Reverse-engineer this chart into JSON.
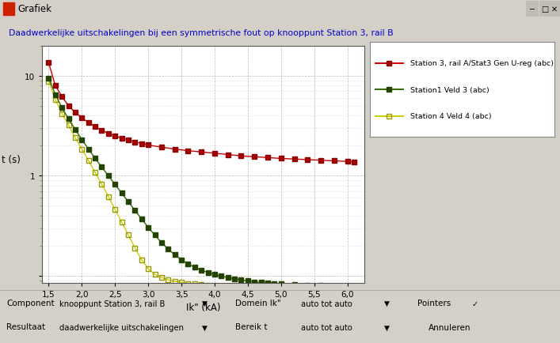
{
  "title": "Daadwerkelijke uitschakelingen bij een symmetrische fout op knooppunt Station 3, rail B",
  "title_color": "#0000cc",
  "xlabel": "Ik\" (kA)",
  "ylabel": "t (s)",
  "xlim": [
    1.4,
    6.25
  ],
  "ylim_log": [
    0.085,
    20
  ],
  "background_color": "#d4d0c8",
  "plot_bg_color": "#ffffff",
  "grid_color": "#bbbbbb",
  "series1": {
    "label": "Station 3, rail A/Stat3 Gen U-reg (abc)",
    "color": "#cc0000",
    "marker_fill": "#aa0000",
    "marker_edge": "#880000",
    "x": [
      1.5,
      1.6,
      1.7,
      1.8,
      1.9,
      2.0,
      2.1,
      2.2,
      2.3,
      2.4,
      2.5,
      2.6,
      2.7,
      2.8,
      2.9,
      3.0,
      3.2,
      3.4,
      3.6,
      3.8,
      4.0,
      4.2,
      4.4,
      4.6,
      4.8,
      5.0,
      5.2,
      5.4,
      5.6,
      5.8,
      6.0,
      6.1
    ],
    "y": [
      13.5,
      8.0,
      6.2,
      5.0,
      4.3,
      3.8,
      3.4,
      3.1,
      2.85,
      2.65,
      2.5,
      2.38,
      2.28,
      2.18,
      2.1,
      2.03,
      1.93,
      1.85,
      1.78,
      1.73,
      1.68,
      1.63,
      1.58,
      1.55,
      1.52,
      1.49,
      1.47,
      1.45,
      1.43,
      1.41,
      1.39,
      1.38
    ]
  },
  "series2": {
    "label": "Station1 Veld 3 (abc)",
    "color": "#336600",
    "marker_fill": "#224400",
    "marker_edge": "#224400",
    "x": [
      1.5,
      1.6,
      1.7,
      1.8,
      1.9,
      2.0,
      2.1,
      2.2,
      2.3,
      2.4,
      2.5,
      2.6,
      2.7,
      2.8,
      2.9,
      3.0,
      3.1,
      3.2,
      3.3,
      3.4,
      3.5,
      3.6,
      3.7,
      3.8,
      3.9,
      4.0,
      4.1,
      4.2,
      4.3,
      4.4,
      4.5,
      4.6,
      4.7,
      4.8,
      4.9,
      5.0,
      5.2,
      5.4,
      5.6,
      5.8,
      6.0,
      6.1
    ],
    "y": [
      9.5,
      6.5,
      4.8,
      3.7,
      2.9,
      2.3,
      1.85,
      1.5,
      1.22,
      1.0,
      0.82,
      0.67,
      0.55,
      0.45,
      0.37,
      0.305,
      0.255,
      0.215,
      0.185,
      0.162,
      0.145,
      0.132,
      0.122,
      0.114,
      0.108,
      0.103,
      0.099,
      0.096,
      0.093,
      0.091,
      0.089,
      0.087,
      0.086,
      0.085,
      0.084,
      0.083,
      0.082,
      0.081,
      0.08,
      0.079,
      0.078,
      0.078
    ]
  },
  "series3": {
    "label": "Station 4 Veld 4 (abc)",
    "color": "#cccc00",
    "marker_fill": "none",
    "marker_edge": "#999900",
    "x": [
      1.5,
      1.6,
      1.7,
      1.8,
      1.9,
      2.0,
      2.1,
      2.2,
      2.3,
      2.4,
      2.5,
      2.6,
      2.7,
      2.8,
      2.9,
      3.0,
      3.1,
      3.2,
      3.3,
      3.4,
      3.5,
      3.6,
      3.7,
      3.8,
      3.9,
      4.0,
      4.1,
      4.2,
      4.3,
      4.4,
      4.5,
      4.6,
      4.7,
      4.8,
      4.9,
      5.0,
      5.2,
      5.4,
      5.6,
      5.8,
      6.0,
      6.1
    ],
    "y": [
      8.8,
      5.8,
      4.2,
      3.2,
      2.4,
      1.85,
      1.42,
      1.08,
      0.82,
      0.62,
      0.46,
      0.345,
      0.255,
      0.19,
      0.145,
      0.118,
      0.103,
      0.096,
      0.091,
      0.088,
      0.086,
      0.084,
      0.083,
      0.082,
      0.081,
      0.08,
      0.079,
      0.079,
      0.078,
      0.078,
      0.077,
      0.077,
      0.077,
      0.077,
      0.077,
      0.077,
      0.077,
      0.077,
      0.077,
      0.077,
      0.077,
      0.077
    ]
  },
  "window_title": "Grafiek",
  "window_bg": "#d4d0c8",
  "titlebar_bg": "#d4d0c8",
  "bottom_bg": "#d4d0c8",
  "legend_entries": [
    "Station 3, rail A/Stat3 Gen U-reg (abc)",
    "Station1 Veld 3 (abc)",
    "Station 4 Veld 4 (abc)"
  ],
  "bottom_labels": {
    "component_label": "Component",
    "component_value": "knooppunt Station 3, rail B",
    "resultaat_label": "Resultaat",
    "resultaat_value": "daadwerkelijke uitschakelingen",
    "domein_label": "Domein Ik\"",
    "domein_value": "auto tot auto",
    "bereik_label": "Bereik t",
    "bereik_value": "auto tot auto",
    "pointers_label": "Pointers",
    "annuleren": "Annuleren"
  }
}
